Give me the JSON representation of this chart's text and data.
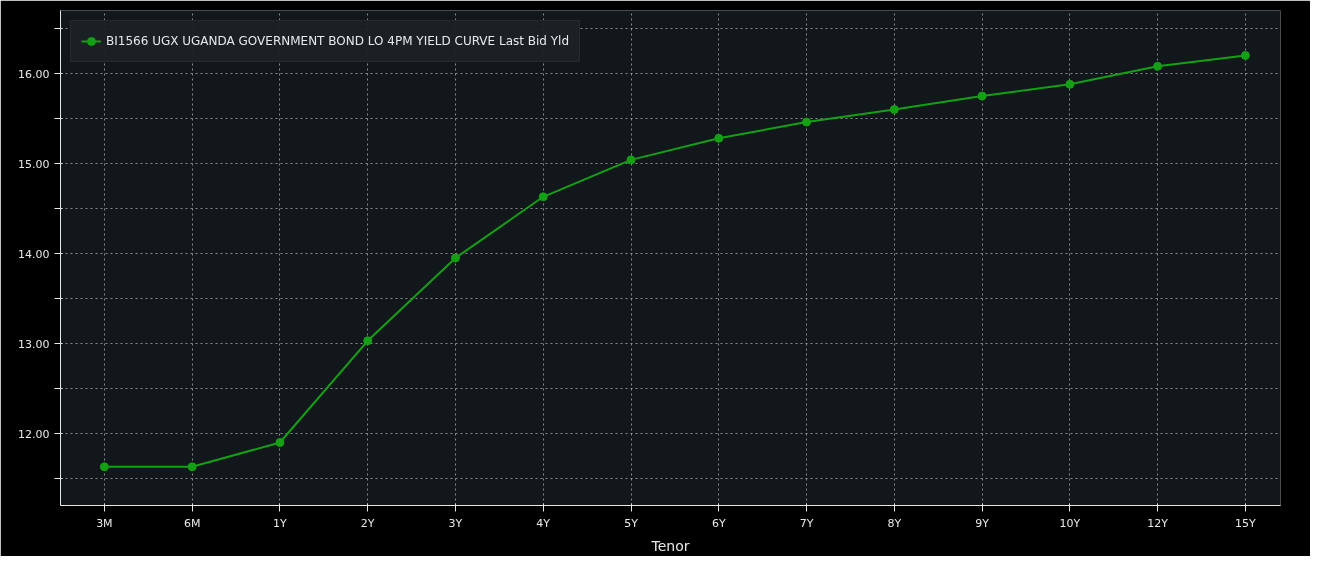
{
  "chart_data": {
    "type": "line",
    "xlabel": "Tenor",
    "categories": [
      "3M",
      "6M",
      "1Y",
      "2Y",
      "3Y",
      "4Y",
      "5Y",
      "6Y",
      "7Y",
      "8Y",
      "9Y",
      "10Y",
      "12Y",
      "15Y"
    ],
    "series": [
      {
        "name": "BI1566 UGX UGANDA GOVERNMENT BOND LO 4PM YIELD CURVE Last Bid Yld",
        "color": "#14a014",
        "values": [
          11.63,
          11.63,
          11.9,
          13.03,
          13.95,
          14.63,
          15.04,
          15.28,
          15.46,
          15.6,
          15.75,
          15.88,
          16.08,
          16.2
        ]
      }
    ],
    "ylim": [
      11.2,
      16.7
    ],
    "yticks": [
      {
        "value": 11.5,
        "label": null
      },
      {
        "value": 12,
        "label": "12.00"
      },
      {
        "value": 12.5,
        "label": null
      },
      {
        "value": 13,
        "label": "13.00"
      },
      {
        "value": 13.5,
        "label": null
      },
      {
        "value": 14,
        "label": "14.00"
      },
      {
        "value": 14.5,
        "label": null
      },
      {
        "value": 15,
        "label": "15.00"
      },
      {
        "value": 15.5,
        "label": null
      },
      {
        "value": 16,
        "label": "16.00"
      },
      {
        "value": 16.5,
        "label": null
      }
    ],
    "grid": true,
    "legend": "top left",
    "marker": "circle",
    "line_style": "solid"
  }
}
